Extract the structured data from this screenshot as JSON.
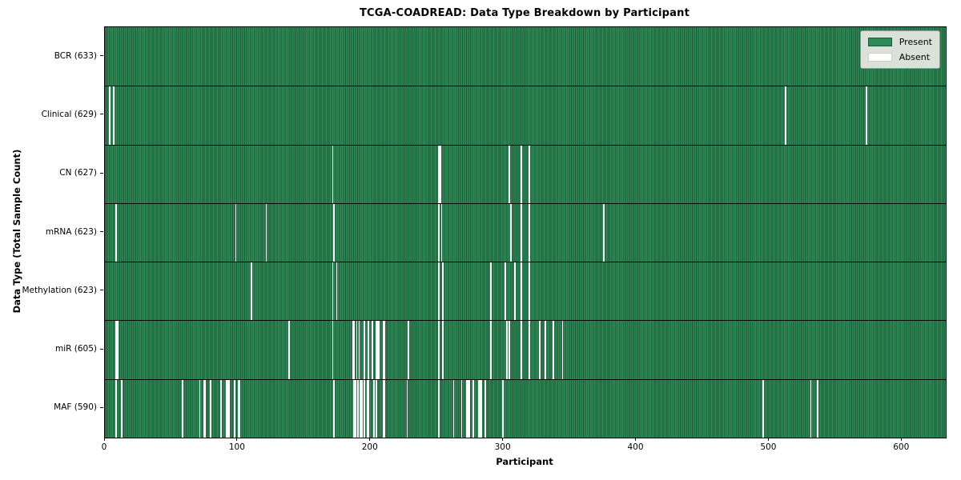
{
  "chart_data": {
    "type": "heatmap",
    "title": "TCGA-COADREAD: Data Type Breakdown by Participant",
    "xlabel": "Participant",
    "ylabel": "Data Type (Total Sample Count)",
    "n_participants": 633,
    "xlim": [
      0,
      633
    ],
    "x_ticks": [
      0,
      100,
      200,
      300,
      400,
      500,
      600
    ],
    "grid": false,
    "legend_position": "upper right",
    "legend": [
      {
        "label": "Present",
        "color": "#2e8b57",
        "edge": "#1d5937"
      },
      {
        "label": "Absent",
        "color": "#ffffff",
        "edge": "#cccccc"
      }
    ],
    "colors": {
      "present": "#2e8b57",
      "cell_edge": "#1d5937",
      "absent": "#ffffff",
      "row_border": "#000000",
      "legend_bg": "#d9e1d9",
      "legend_border": "#9a9a9a"
    },
    "rows": [
      {
        "label": "BCR (633)",
        "data_type": "BCR",
        "present_count": 633,
        "absent": []
      },
      {
        "label": "Clinical (629)",
        "data_type": "Clinical",
        "present_count": 629,
        "absent": [
          3,
          6,
          512,
          573
        ]
      },
      {
        "label": "CN (627)",
        "data_type": "CN",
        "present_count": 627,
        "absent": [
          171,
          251,
          252,
          304,
          313,
          319
        ]
      },
      {
        "label": "mRNA (623)",
        "data_type": "mRNA",
        "present_count": 623,
        "absent": [
          8,
          98,
          121,
          172,
          251,
          253,
          305,
          313,
          319,
          375
        ]
      },
      {
        "label": "Methylation (623)",
        "data_type": "Methylation",
        "present_count": 623,
        "absent": [
          110,
          171,
          174,
          251,
          254,
          290,
          301,
          308,
          313,
          319
        ]
      },
      {
        "label": "miR (605)",
        "data_type": "miR",
        "present_count": 605,
        "absent": [
          8,
          9,
          138,
          171,
          186,
          187,
          189,
          191,
          195,
          198,
          201,
          204,
          205,
          206,
          209,
          210,
          228,
          251,
          254,
          290,
          302,
          304,
          313,
          319,
          327,
          331,
          337,
          344
        ]
      },
      {
        "label": "MAF (590)",
        "data_type": "MAF",
        "present_count": 590,
        "absent": [
          8,
          12,
          58,
          71,
          74,
          75,
          79,
          87,
          91,
          92,
          93,
          97,
          100,
          101,
          172,
          187,
          188,
          190,
          192,
          193,
          195,
          197,
          198,
          202,
          204,
          209,
          210,
          227,
          251,
          262,
          268,
          272,
          273,
          274,
          277,
          281,
          282,
          283,
          286,
          299,
          495,
          531,
          536
        ]
      }
    ]
  }
}
